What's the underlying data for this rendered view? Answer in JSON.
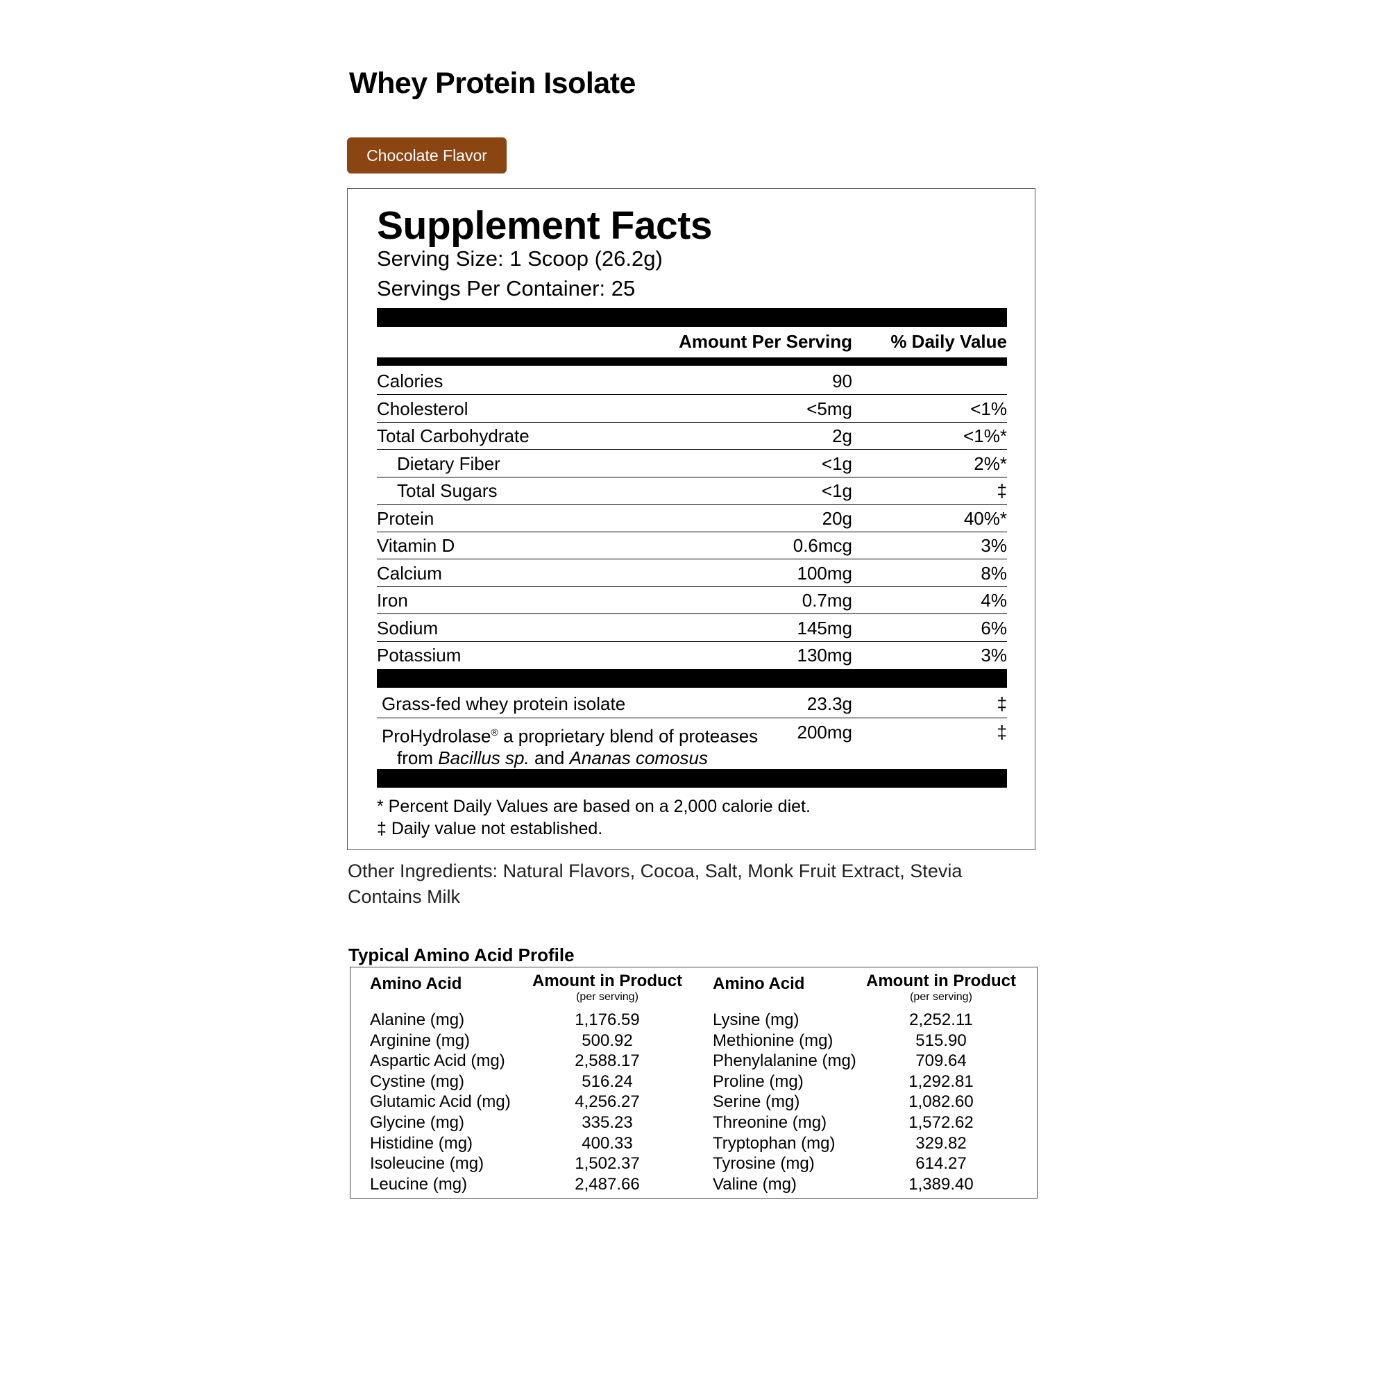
{
  "product_title": "Whey Protein Isolate",
  "flavor_badge": "Chocolate Flavor",
  "colors": {
    "badge": "#8B4513"
  },
  "facts": {
    "title": "Supplement Facts",
    "serving_size": "Serving Size: 1 Scoop (26.2g)",
    "servings_per_container": "Servings Per Container: 25",
    "col_amount": "Amount Per Serving",
    "col_dv": "% Daily Value",
    "rows": [
      {
        "name": "Calories",
        "amount": "90",
        "dv": ""
      },
      {
        "name": "Cholesterol",
        "amount": "<5mg",
        "dv": "<1%"
      },
      {
        "name": "Total Carbohydrate",
        "amount": "2g",
        "dv": "<1%*"
      },
      {
        "name": "Dietary Fiber",
        "amount": "<1g",
        "dv": "2%*"
      },
      {
        "name": "Total Sugars",
        "amount": "<1g",
        "dv": "‡"
      },
      {
        "name": "Protein",
        "amount": "20g",
        "dv": "40%*"
      },
      {
        "name": "Vitamin D",
        "amount": "0.6mcg",
        "dv": "3%"
      },
      {
        "name": "Calcium",
        "amount": "100mg",
        "dv": "8%"
      },
      {
        "name": "Iron",
        "amount": "0.7mg",
        "dv": "4%"
      },
      {
        "name": "Sodium",
        "amount": "145mg",
        "dv": "6%"
      },
      {
        "name": "Potassium",
        "amount": "130mg",
        "dv": "3%"
      }
    ],
    "blend": [
      {
        "name": "Grass-fed whey protein isolate",
        "amount": "23.3g",
        "dv": "‡"
      },
      {
        "name_pre": "ProHydrolase",
        "reg": "®",
        "name_post": " a proprietary blend of proteases",
        "line2_pre": "from ",
        "line2_it1": "Bacillus sp.",
        "line2_mid": " and ",
        "line2_it2": "Ananas comosus",
        "amount": "200mg",
        "dv": "‡"
      }
    ],
    "footnote1": "* Percent Daily Values are based on a 2,000 calorie diet.",
    "footnote2": "‡ Daily value not established."
  },
  "other_ingredients": "Other Ingredients: Natural Flavors, Cocoa, Salt, Monk Fruit Extract, Stevia",
  "allergen": "Contains Milk",
  "amino": {
    "title": "Typical Amino Acid Profile",
    "col_name": "Amino Acid",
    "col_amount": "Amount in Product",
    "col_sub": "(per serving)",
    "left": [
      {
        "name": "Alanine (mg)",
        "value": "1,176.59"
      },
      {
        "name": "Arginine (mg)",
        "value": "500.92"
      },
      {
        "name": "Aspartic Acid (mg)",
        "value": "2,588.17"
      },
      {
        "name": "Cystine (mg)",
        "value": "516.24"
      },
      {
        "name": "Glutamic Acid (mg)",
        "value": "4,256.27"
      },
      {
        "name": "Glycine (mg)",
        "value": "335.23"
      },
      {
        "name": "Histidine (mg)",
        "value": "400.33"
      },
      {
        "name": "Isoleucine (mg)",
        "value": "1,502.37"
      },
      {
        "name": "Leucine (mg)",
        "value": "2,487.66"
      }
    ],
    "right": [
      {
        "name": "Lysine (mg)",
        "value": "2,252.11"
      },
      {
        "name": "Methionine (mg)",
        "value": "515.90"
      },
      {
        "name": "Phenylalanine (mg)",
        "value": "709.64"
      },
      {
        "name": "Proline (mg)",
        "value": "1,292.81"
      },
      {
        "name": "Serine (mg)",
        "value": "1,082.60"
      },
      {
        "name": "Threonine (mg)",
        "value": "1,572.62"
      },
      {
        "name": "Tryptophan (mg)",
        "value": "329.82"
      },
      {
        "name": "Tyrosine (mg)",
        "value": "614.27"
      },
      {
        "name": "Valine (mg)",
        "value": "1,389.40"
      }
    ]
  }
}
